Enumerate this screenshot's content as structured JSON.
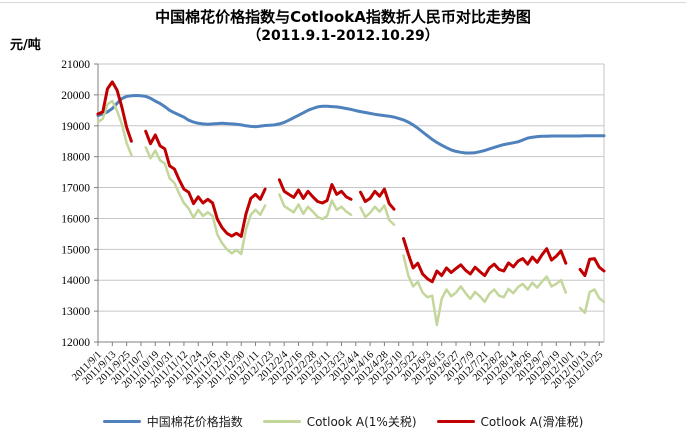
{
  "chart_data": {
    "type": "line",
    "title": "中国棉花价格指数与CotlookA指数折人民币对比走势图",
    "subtitle": "（2011.9.1-2012.10.29）",
    "ylabel": "元/吨",
    "xlabel": "",
    "ylim": [
      12000,
      21000
    ],
    "ytick_step": 1000,
    "grid": "horizontal",
    "legend_position": "bottom",
    "x_tick_interval_days": 12,
    "x_day_max": 424,
    "x_tick_labels": [
      "2011/9/1",
      "2011/9/13",
      "2011/9/25",
      "2011/10/7",
      "2011/10/19",
      "2011/10/31",
      "2011/11/12",
      "2011/11/24",
      "2011/12/6",
      "2011/12/18",
      "2011/12/30",
      "2012/1/11",
      "2012/1/23",
      "2012/2/4",
      "2012/2/16",
      "2012/2/28",
      "2012/3/11",
      "2012/3/23",
      "2012/4/4",
      "2012/4/16",
      "2012/4/28",
      "2012/5/10",
      "2012/5/22",
      "2012/6/3",
      "2012/6/15",
      "2012/6/27",
      "2012/7/9",
      "2012/7/21",
      "2012/8/2",
      "2012/8/14",
      "2012/8/26",
      "2012/9/7",
      "2012/9/19",
      "2012/10/1",
      "2012/10/13",
      "2012/10/25"
    ],
    "x_days": [
      0,
      4,
      8,
      12,
      16,
      20,
      24,
      28,
      32,
      36,
      40,
      44,
      48,
      52,
      56,
      60,
      64,
      68,
      72,
      76,
      80,
      84,
      88,
      92,
      96,
      100,
      104,
      108,
      112,
      116,
      120,
      124,
      128,
      132,
      136,
      140,
      144,
      148,
      152,
      156,
      160,
      164,
      168,
      172,
      176,
      180,
      184,
      188,
      192,
      196,
      200,
      204,
      208,
      212,
      216,
      220,
      224,
      228,
      232,
      236,
      240,
      244,
      248,
      252,
      256,
      260,
      264,
      268,
      272,
      276,
      280,
      284,
      288,
      292,
      296,
      300,
      304,
      308,
      312,
      316,
      320,
      324,
      328,
      332,
      336,
      340,
      344,
      348,
      352,
      356,
      360,
      364,
      368,
      372,
      376,
      380,
      384,
      388,
      392,
      396,
      400,
      404,
      408,
      412,
      416,
      420,
      424
    ],
    "series": [
      {
        "id": "china-cotton-index",
        "name": "中国棉花价格指数",
        "color": "#4f81bd",
        "width": 3,
        "values": [
          19330,
          19380,
          19450,
          19560,
          19730,
          19880,
          19950,
          19970,
          19980,
          19970,
          19950,
          19890,
          19800,
          19720,
          19620,
          19500,
          19420,
          19350,
          19280,
          19180,
          19120,
          19080,
          19060,
          19050,
          19060,
          19070,
          19080,
          19070,
          19060,
          19050,
          19030,
          19000,
          18980,
          18970,
          18990,
          19010,
          19020,
          19030,
          19060,
          19110,
          19180,
          19260,
          19340,
          19420,
          19500,
          19560,
          19610,
          19630,
          19630,
          19620,
          19610,
          19590,
          19560,
          19530,
          19490,
          19460,
          19430,
          19400,
          19370,
          19350,
          19330,
          19310,
          19280,
          19240,
          19190,
          19120,
          19030,
          18920,
          18800,
          18680,
          18560,
          18460,
          18370,
          18290,
          18220,
          18170,
          18140,
          18120,
          18120,
          18130,
          18160,
          18200,
          18250,
          18300,
          18350,
          18390,
          18420,
          18450,
          18480,
          18540,
          18600,
          18630,
          18650,
          18660,
          18660,
          18670,
          18670,
          18670,
          18670,
          18670,
          18670,
          18670,
          18680,
          18680,
          18680,
          18680,
          18680
        ]
      },
      {
        "id": "cotlook-a-1pct-tariff",
        "name": "Cotlook A(1%关税)",
        "color": "#c3d69b",
        "width": 2.5,
        "values": [
          19120,
          19230,
          19700,
          19800,
          19480,
          19050,
          18450,
          18050,
          null,
          null,
          18300,
          17950,
          18200,
          17880,
          17780,
          17300,
          17150,
          16800,
          16500,
          16320,
          16020,
          16280,
          16080,
          16200,
          16080,
          15480,
          15200,
          15000,
          14870,
          14980,
          14850,
          15650,
          16120,
          16280,
          16120,
          16420,
          null,
          null,
          16780,
          16400,
          16300,
          16200,
          16450,
          16150,
          16380,
          16220,
          16050,
          15980,
          16080,
          16580,
          16280,
          16380,
          16220,
          16120,
          null,
          16350,
          16050,
          16180,
          16380,
          16220,
          16420,
          15950,
          15800,
          null,
          14800,
          14150,
          13800,
          13950,
          13600,
          13450,
          13500,
          12550,
          13400,
          13700,
          13480,
          13600,
          13800,
          13580,
          13400,
          13620,
          13480,
          13300,
          13560,
          13700,
          13500,
          13450,
          13720,
          13580,
          13780,
          13880,
          13700,
          13920,
          13760,
          13950,
          14120,
          13800,
          13880,
          14000,
          13600,
          null,
          null,
          13100,
          12950,
          13620,
          13700,
          13420,
          13300
        ]
      },
      {
        "id": "cotlook-a-sliding-duty",
        "name": "Cotlook A(滑准税)",
        "color": "#c00000",
        "width": 3,
        "values": [
          19380,
          19450,
          20200,
          20420,
          20150,
          19600,
          18950,
          18500,
          null,
          null,
          18820,
          18420,
          18700,
          18350,
          18250,
          17700,
          17600,
          17250,
          16950,
          16850,
          16480,
          16700,
          16500,
          16620,
          16500,
          15980,
          15700,
          15520,
          15430,
          15520,
          15420,
          16150,
          16650,
          16780,
          16620,
          16950,
          null,
          null,
          17250,
          16880,
          16780,
          16680,
          16920,
          16650,
          16880,
          16700,
          16550,
          16500,
          16580,
          17100,
          16780,
          16880,
          16700,
          16620,
          null,
          16850,
          16550,
          16650,
          16880,
          16720,
          16950,
          16480,
          16300,
          null,
          15350,
          14850,
          14400,
          14550,
          14200,
          14050,
          13950,
          14300,
          14150,
          14400,
          14250,
          14380,
          14500,
          14320,
          14200,
          14420,
          14280,
          14150,
          14400,
          14520,
          14350,
          14300,
          14560,
          14430,
          14620,
          14700,
          14520,
          14750,
          14580,
          14820,
          15020,
          14650,
          14780,
          14950,
          14550,
          null,
          null,
          14350,
          14150,
          14680,
          14700,
          14420,
          14300
        ]
      }
    ],
    "y_tick_labels": [
      21000,
      20000,
      19000,
      18000,
      17000,
      16000,
      15000,
      14000,
      13000,
      12000
    ]
  }
}
